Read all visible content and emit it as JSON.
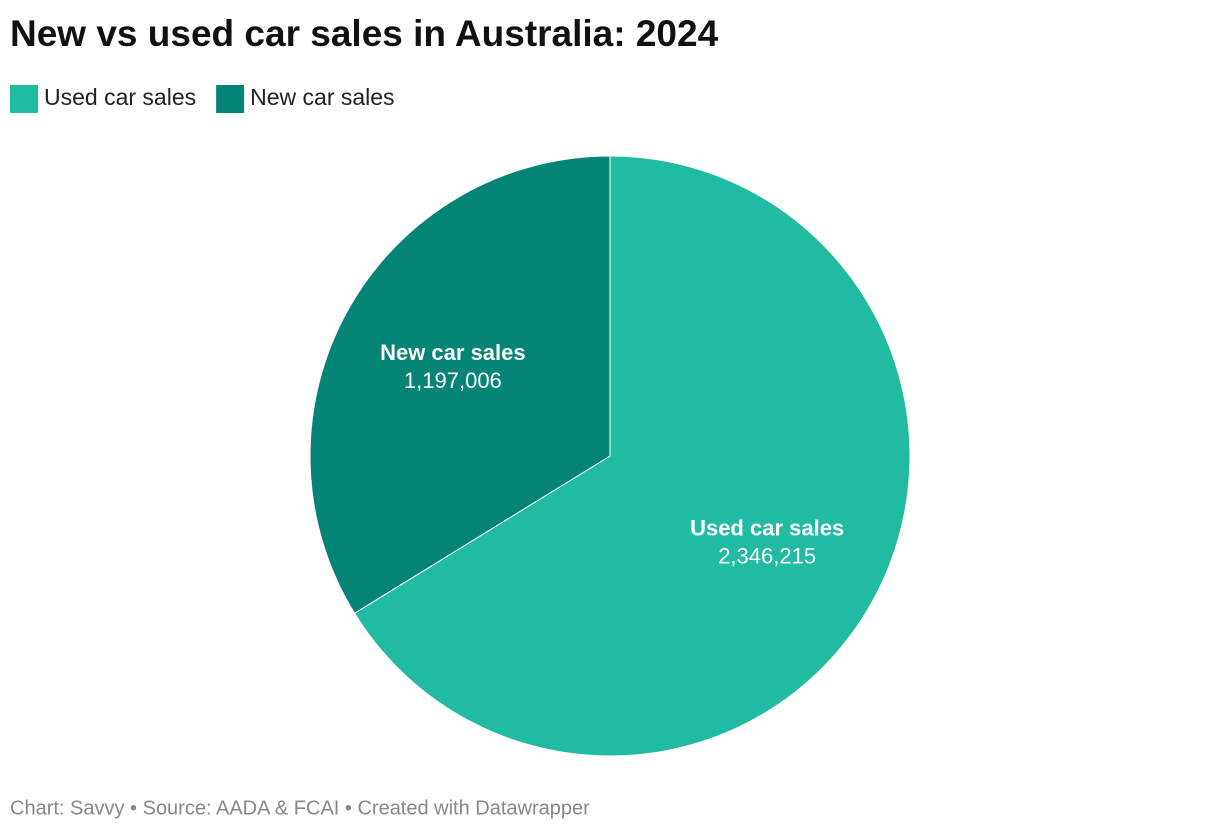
{
  "chart_data": {
    "type": "pie",
    "title": "New vs used car sales in Australia: 2024",
    "categories": [
      "Used car sales",
      "New car sales"
    ],
    "values": [
      2346215,
      1197006
    ],
    "value_labels": [
      "2,346,215",
      "1,197,006"
    ],
    "colors": [
      "#20bba0",
      "#038474"
    ],
    "legend": "top-left",
    "footer": "Chart: Savvy • Source: AADA & FCAI • Created with Datawrapper"
  }
}
